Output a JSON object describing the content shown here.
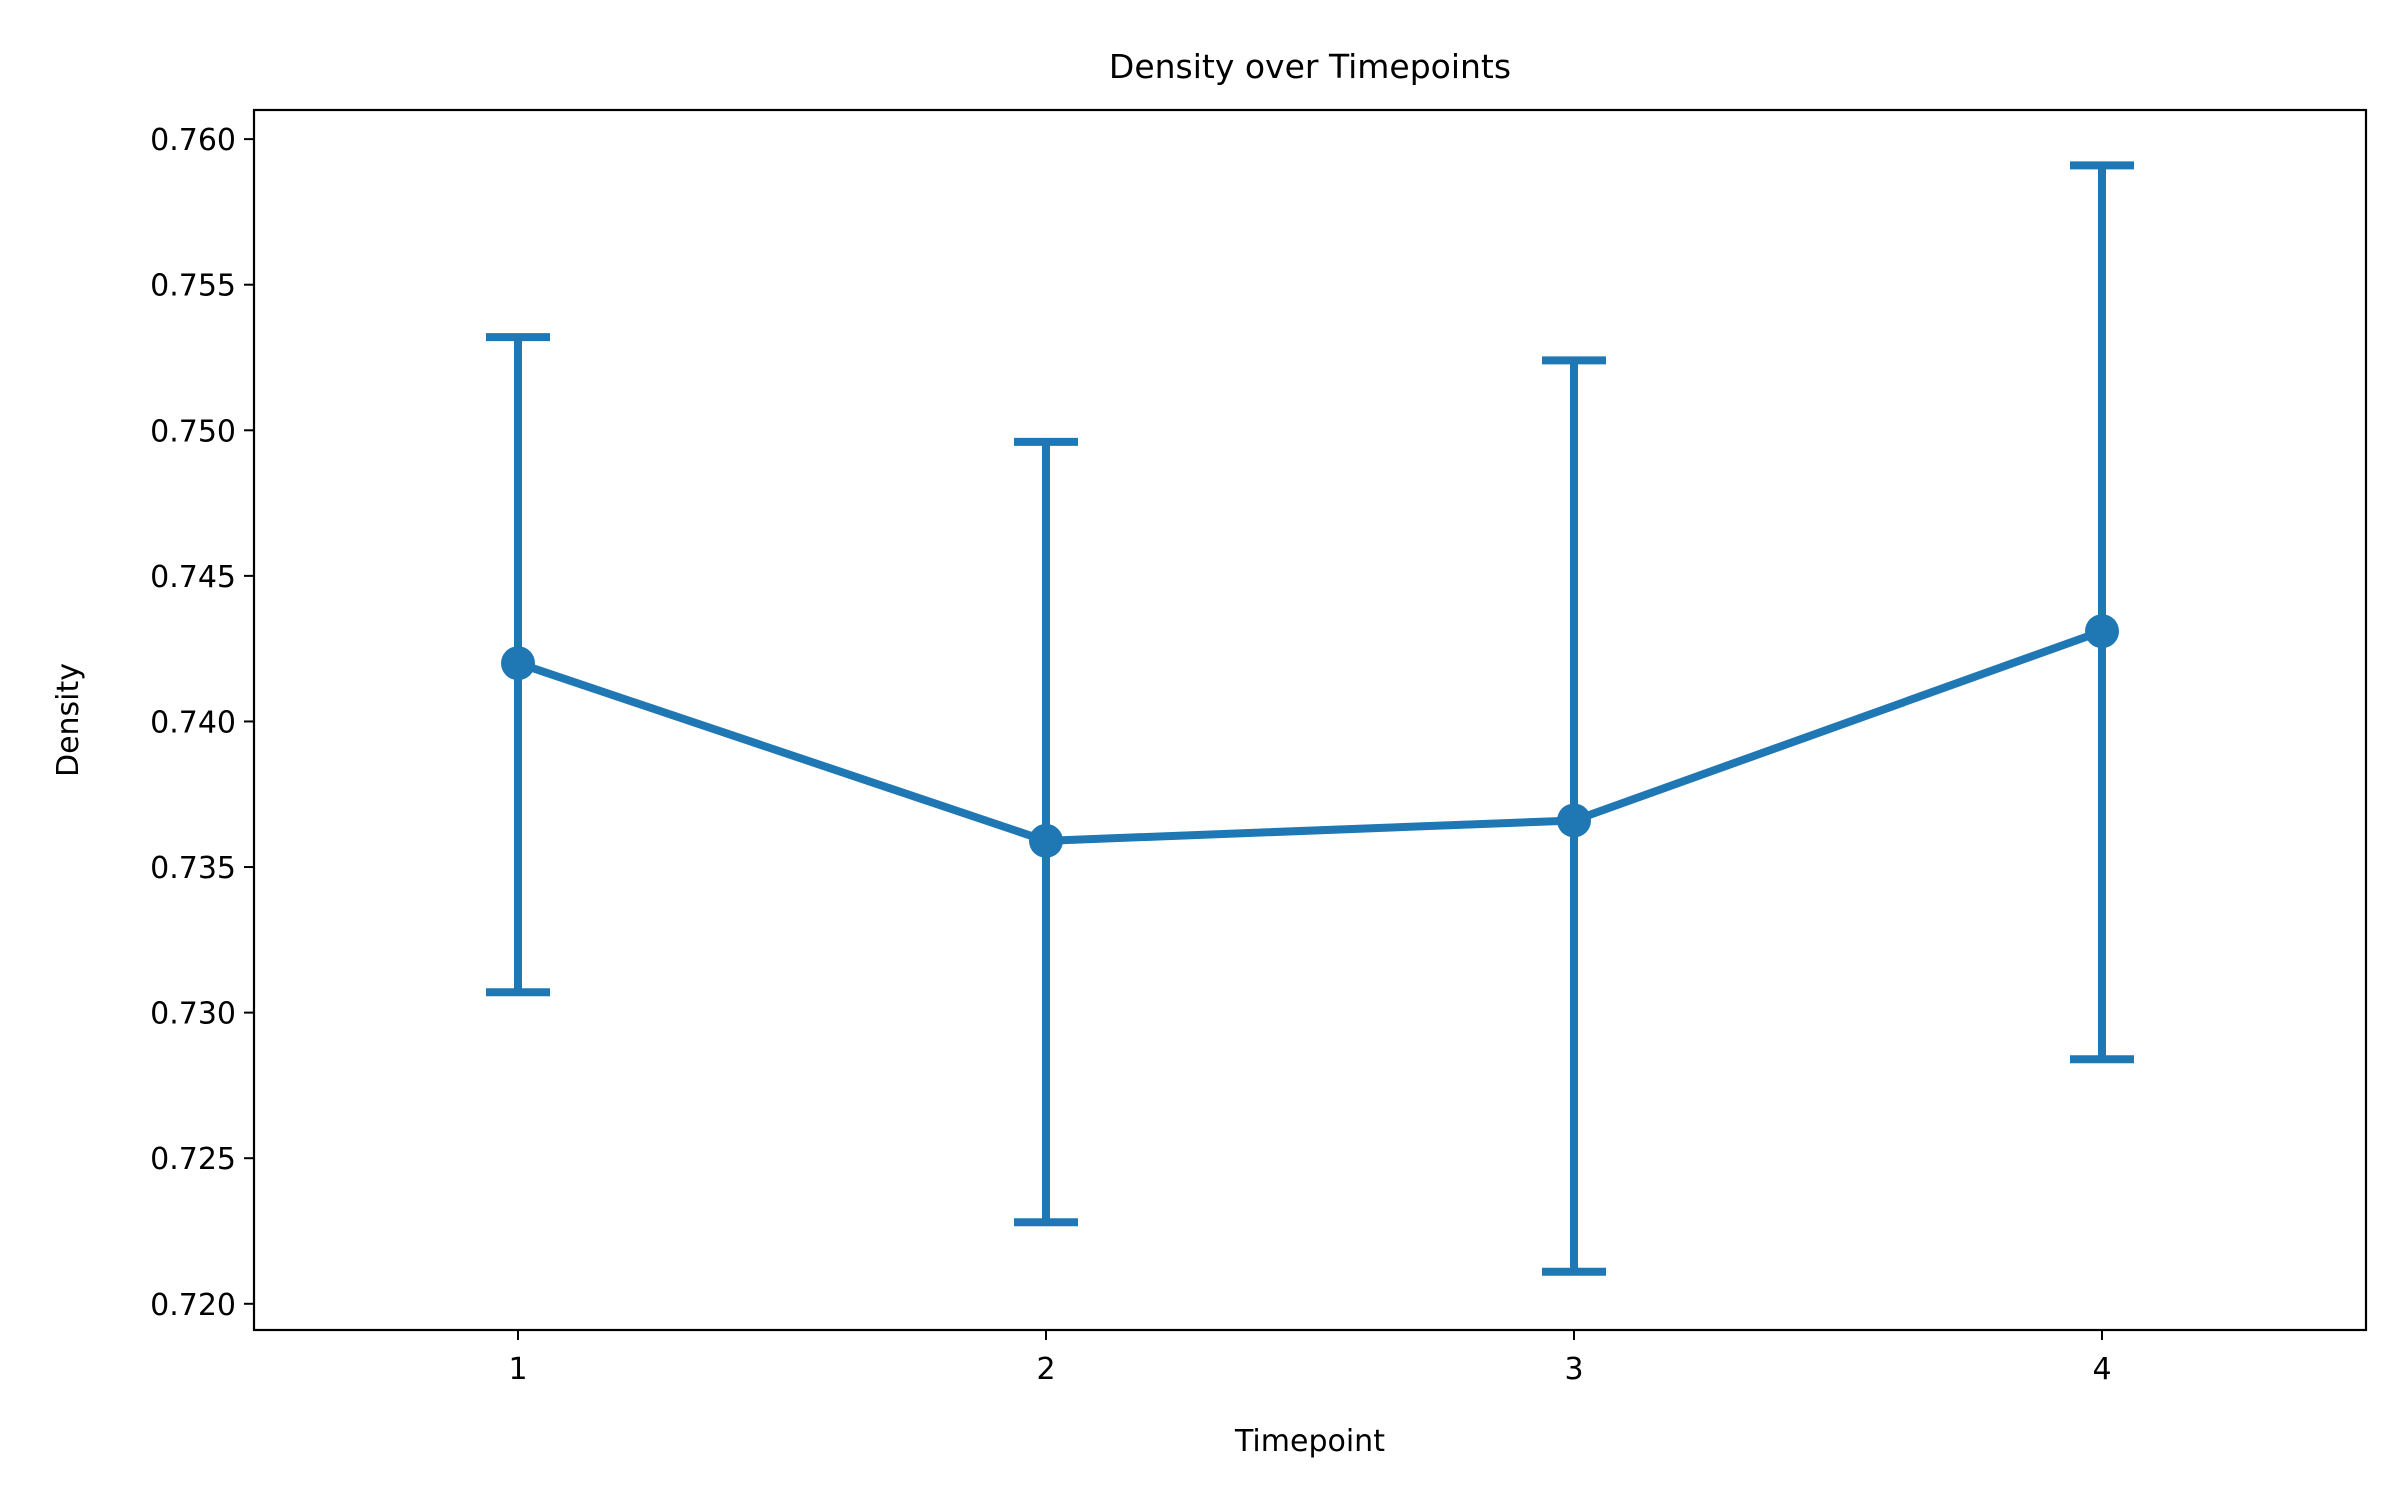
{
  "chart_data": {
    "type": "line",
    "title": "Density over Timepoints",
    "xlabel": "Timepoint",
    "ylabel": "Density",
    "x": [
      1,
      2,
      3,
      4
    ],
    "x_tick_labels": [
      "1",
      "2",
      "3",
      "4"
    ],
    "xlim": [
      0.5,
      4.5
    ],
    "ylim": [
      0.7191,
      0.761
    ],
    "y_ticks": [
      0.72,
      0.725,
      0.73,
      0.735,
      0.74,
      0.745,
      0.75,
      0.755,
      0.76
    ],
    "y_tick_labels": [
      "0.720",
      "0.725",
      "0.730",
      "0.735",
      "0.740",
      "0.745",
      "0.750",
      "0.755",
      "0.760"
    ],
    "grid": false,
    "series": [
      {
        "values": [
          0.742,
          0.7359,
          0.7366,
          0.7431
        ],
        "error_lower": [
          0.7307,
          0.7228,
          0.7211,
          0.7284
        ],
        "error_upper": [
          0.7532,
          0.7496,
          0.7524,
          0.7591
        ],
        "color": "#1f77b4"
      }
    ]
  }
}
